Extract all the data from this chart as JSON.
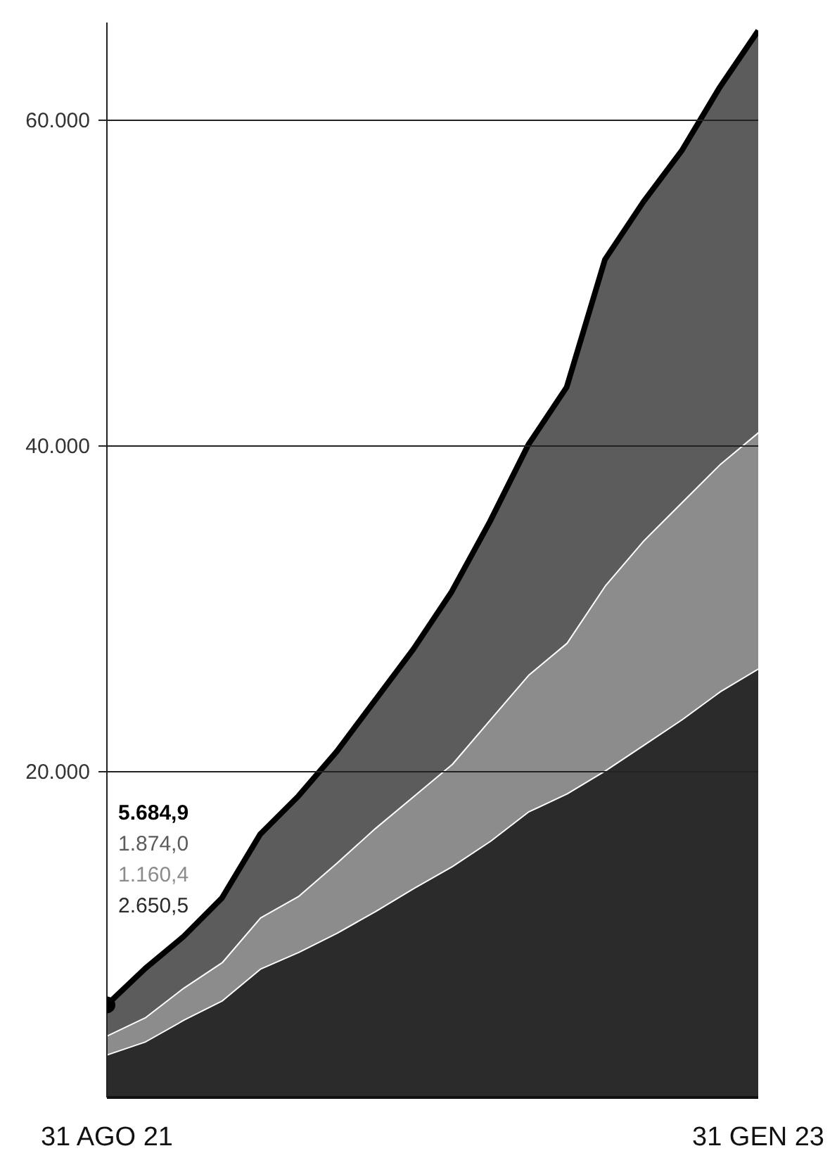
{
  "chart_data": {
    "type": "area",
    "stacked": true,
    "categories": [
      "31 AGO 21",
      null,
      null,
      null,
      null,
      null,
      null,
      null,
      null,
      null,
      null,
      null,
      null,
      null,
      null,
      null,
      null,
      "31 GEN 23"
    ],
    "series": [
      {
        "color": "#2b2b2b",
        "values": [
          2650.5,
          3450,
          4780,
          5960,
          7920,
          8940,
          10120,
          11450,
          12860,
          14200,
          15760,
          17570,
          18670,
          20080,
          21650,
          23220,
          24940,
          26350
        ]
      },
      {
        "color": "#8c8c8c",
        "values": [
          1160.4,
          1490,
          1970,
          2350,
          3140,
          3450,
          4310,
          5100,
          5650,
          6270,
          7460,
          8390,
          9250,
          11370,
          12550,
          13330,
          13960,
          14510
        ]
      },
      {
        "color": "#5c5c5c",
        "values": [
          1874.0,
          2980,
          3130,
          3930,
          5100,
          6120,
          6820,
          7840,
          9020,
          10590,
          12150,
          14120,
          15690,
          20000,
          20780,
          21570,
          23140,
          24640
        ]
      }
    ],
    "annotations": [
      "5.684,9",
      "1.874,0",
      "1.160,4",
      "2.650,5"
    ],
    "ylim": [
      0,
      66000
    ],
    "yticks": [
      {
        "value": 20000,
        "label": "20.000"
      },
      {
        "value": 40000,
        "label": "40.000"
      },
      {
        "value": 60000,
        "label": "60.000"
      }
    ],
    "grid": "y"
  }
}
